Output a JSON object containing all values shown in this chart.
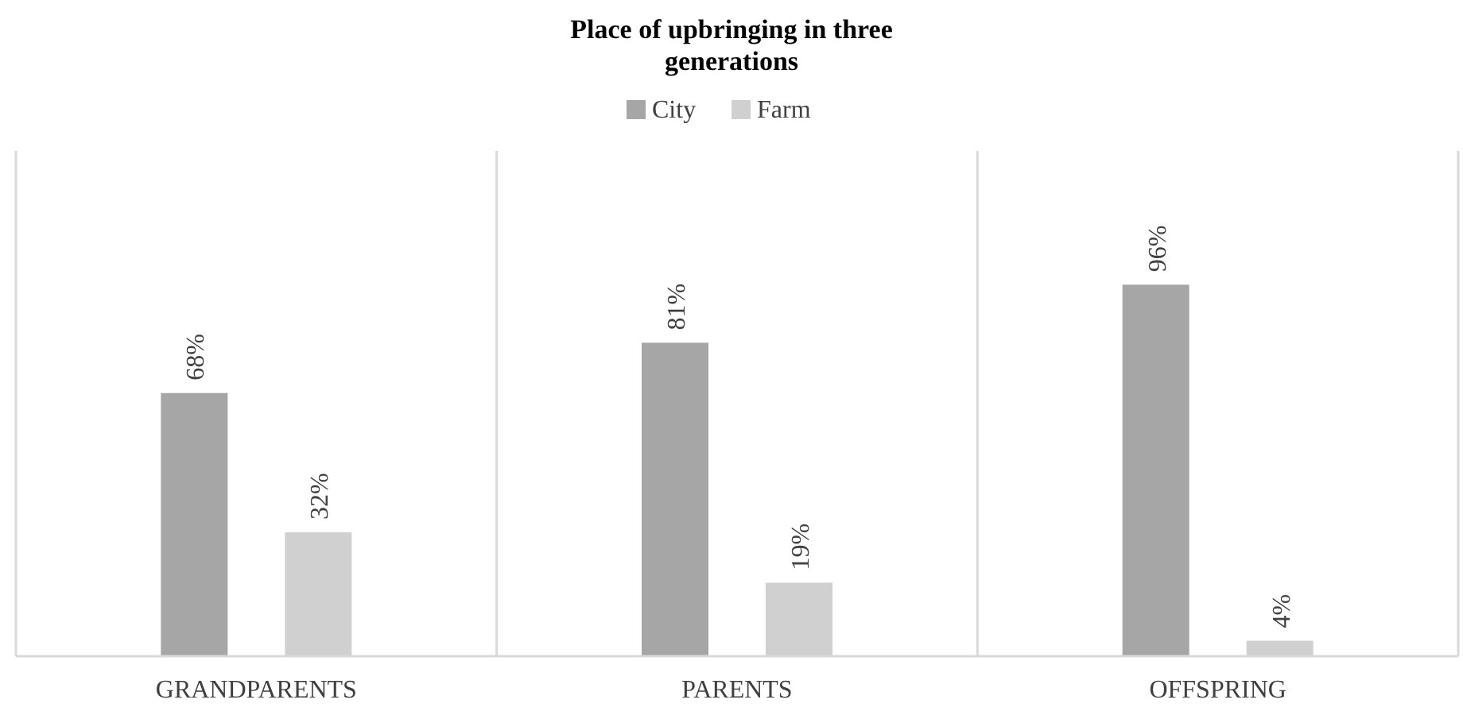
{
  "chart_data": {
    "type": "bar",
    "title": "Place of upbringing in three generations",
    "categories": [
      "GRANDPARENTS",
      "PARENTS",
      "OFFSPRING"
    ],
    "series": [
      {
        "name": "City",
        "color": "#a6a6a6",
        "values": [
          68,
          81,
          96
        ],
        "value_labels": [
          "68%",
          "81%",
          "96%"
        ]
      },
      {
        "name": "Farm",
        "color": "#d0d0d0",
        "values": [
          32,
          19,
          4
        ],
        "value_labels": [
          "32%",
          "19%",
          "4%"
        ]
      }
    ],
    "legend": "top",
    "grid": "x"
  }
}
